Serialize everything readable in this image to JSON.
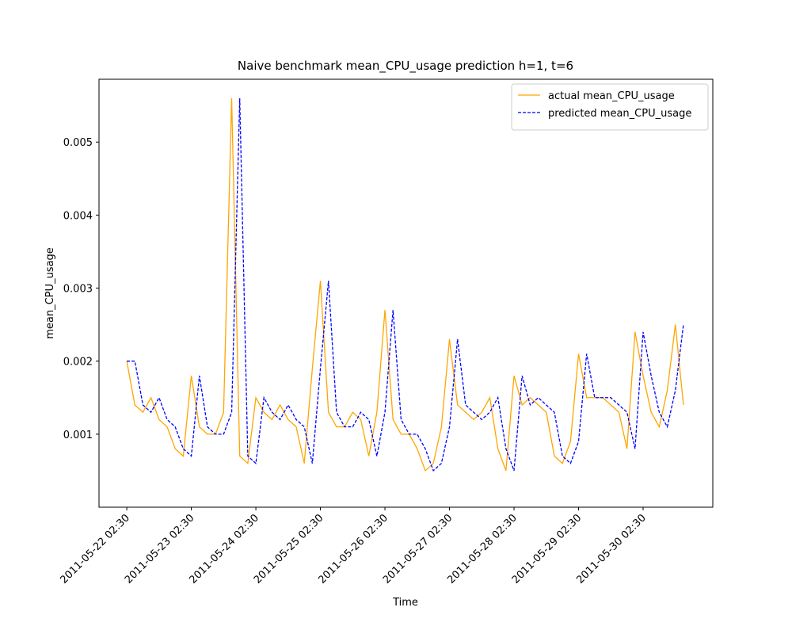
{
  "chart_data": {
    "type": "line",
    "title": "Naive benchmark mean_CPU_usage prediction h=1, t=6",
    "xlabel": "Time",
    "ylabel": "mean_CPU_usage",
    "x": [
      "2011-05-22 02:30",
      "2011-05-22 05:30",
      "2011-05-22 08:30",
      "2011-05-22 11:30",
      "2011-05-22 14:30",
      "2011-05-22 17:30",
      "2011-05-22 20:30",
      "2011-05-22 23:30",
      "2011-05-23 02:30",
      "2011-05-23 05:30",
      "2011-05-23 08:30",
      "2011-05-23 11:30",
      "2011-05-23 14:30",
      "2011-05-23 17:30",
      "2011-05-23 20:30",
      "2011-05-23 23:30",
      "2011-05-24 02:30",
      "2011-05-24 05:30",
      "2011-05-24 08:30",
      "2011-05-24 11:30",
      "2011-05-24 14:30",
      "2011-05-24 17:30",
      "2011-05-24 20:30",
      "2011-05-24 23:30",
      "2011-05-25 02:30",
      "2011-05-25 05:30",
      "2011-05-25 08:30",
      "2011-05-25 11:30",
      "2011-05-25 14:30",
      "2011-05-25 17:30",
      "2011-05-25 20:30",
      "2011-05-25 23:30",
      "2011-05-26 02:30",
      "2011-05-26 05:30",
      "2011-05-26 08:30",
      "2011-05-26 11:30",
      "2011-05-26 14:30",
      "2011-05-26 17:30",
      "2011-05-26 20:30",
      "2011-05-26 23:30",
      "2011-05-27 02:30",
      "2011-05-27 05:30",
      "2011-05-27 08:30",
      "2011-05-27 11:30",
      "2011-05-27 14:30",
      "2011-05-27 17:30",
      "2011-05-27 20:30",
      "2011-05-27 23:30",
      "2011-05-28 02:30",
      "2011-05-28 05:30",
      "2011-05-28 08:30",
      "2011-05-28 11:30",
      "2011-05-28 14:30",
      "2011-05-28 17:30",
      "2011-05-28 20:30",
      "2011-05-28 23:30",
      "2011-05-29 02:30",
      "2011-05-29 05:30",
      "2011-05-29 08:30",
      "2011-05-29 11:30",
      "2011-05-29 14:30",
      "2011-05-29 17:30",
      "2011-05-29 20:30",
      "2011-05-29 23:30",
      "2011-05-30 02:30",
      "2011-05-30 05:30",
      "2011-05-30 08:30",
      "2011-05-30 11:30",
      "2011-05-30 14:30",
      "2011-05-30 17:30"
    ],
    "series": [
      {
        "name": "actual mean_CPU_usage",
        "color": "#ffa500",
        "linestyle": "-",
        "values": [
          0.002,
          0.0014,
          0.0013,
          0.0015,
          0.0012,
          0.0011,
          0.0008,
          0.0007,
          0.0018,
          0.0011,
          0.001,
          0.001,
          0.0013,
          0.0056,
          0.0007,
          0.0006,
          0.0015,
          0.0013,
          0.0012,
          0.0014,
          0.0012,
          0.0011,
          0.0006,
          0.0019,
          0.0031,
          0.0013,
          0.0011,
          0.0011,
          0.0013,
          0.0012,
          0.0007,
          0.0013,
          0.0027,
          0.0012,
          0.001,
          0.001,
          0.0008,
          0.0005,
          0.0006,
          0.0011,
          0.0023,
          0.0014,
          0.0013,
          0.0012,
          0.0013,
          0.0015,
          0.0008,
          0.0005,
          0.0018,
          0.0014,
          0.0015,
          0.0014,
          0.0013,
          0.0007,
          0.0006,
          0.0009,
          0.0021,
          0.0015,
          0.0015,
          0.0015,
          0.0014,
          0.0013,
          0.0008,
          0.0024,
          0.0018,
          0.0013,
          0.0011,
          0.0016,
          0.0025,
          0.0014
        ]
      },
      {
        "name": "predicted mean_CPU_usage",
        "color": "#0000ff",
        "linestyle": "--",
        "values": [
          0.002,
          0.002,
          0.0014,
          0.0013,
          0.0015,
          0.0012,
          0.0011,
          0.0008,
          0.0007,
          0.0018,
          0.0011,
          0.001,
          0.001,
          0.0013,
          0.0056,
          0.0007,
          0.0006,
          0.0015,
          0.0013,
          0.0012,
          0.0014,
          0.0012,
          0.0011,
          0.0006,
          0.0019,
          0.0031,
          0.0013,
          0.0011,
          0.0011,
          0.0013,
          0.0012,
          0.0007,
          0.0013,
          0.0027,
          0.0012,
          0.001,
          0.001,
          0.0008,
          0.0005,
          0.0006,
          0.0011,
          0.0023,
          0.0014,
          0.0013,
          0.0012,
          0.0013,
          0.0015,
          0.0008,
          0.0005,
          0.0018,
          0.0014,
          0.0015,
          0.0014,
          0.0013,
          0.0007,
          0.0006,
          0.0009,
          0.0021,
          0.0015,
          0.0015,
          0.0015,
          0.0014,
          0.0013,
          0.0008,
          0.0024,
          0.0018,
          0.0013,
          0.0011,
          0.0016,
          0.0025
        ]
      }
    ],
    "xlim": [
      "2011-05-21 16:10",
      "2011-05-31 04:25"
    ],
    "xticks": [
      "2011-05-22 02:30",
      "2011-05-23 02:30",
      "2011-05-24 02:30",
      "2011-05-25 02:30",
      "2011-05-26 02:30",
      "2011-05-27 02:30",
      "2011-05-28 02:30",
      "2011-05-29 02:30",
      "2011-05-30 02:30"
    ],
    "ylim": [
      0,
      0.00586
    ],
    "yticks": [
      0.001,
      0.002,
      0.003,
      0.004,
      0.005
    ],
    "grid": false,
    "legend": "upper right"
  }
}
